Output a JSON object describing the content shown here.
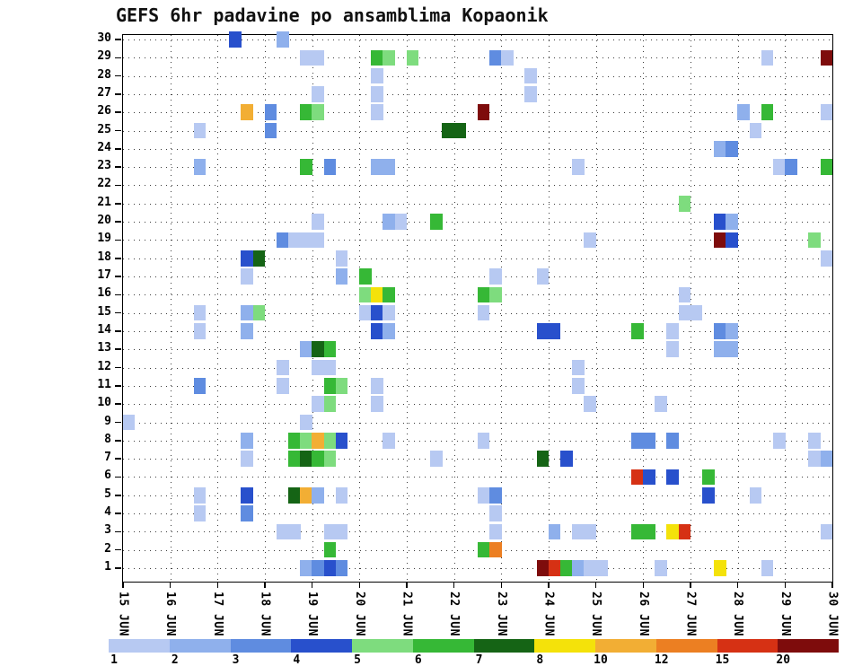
{
  "title": "GEFS 6hr padavine po ansamblima Kopaonik",
  "chart_data": {
    "type": "heatmap",
    "title": "GEFS 6hr padavine po ansamblima Kopaonik",
    "xlabel": "",
    "ylabel": "",
    "grid": "dotted",
    "x_axis": {
      "labels": [
        "15 JUN",
        "16 JUN",
        "17 JUN",
        "18 JUN",
        "19 JUN",
        "20 JUN",
        "21 JUN",
        "22 JUN",
        "23 JUN",
        "24 JUN",
        "25 JUN",
        "26 JUN",
        "27 JUN",
        "28 JUN",
        "29 JUN",
        "30 JUN"
      ],
      "slots_per_day": 4
    },
    "y_axis": {
      "labels": [
        30,
        29,
        28,
        27,
        26,
        25,
        24,
        23,
        22,
        21,
        20,
        19,
        18,
        17,
        16,
        15,
        14,
        13,
        12,
        11,
        10,
        9,
        8,
        7,
        6,
        5,
        4,
        3,
        2,
        1
      ]
    },
    "legend": {
      "position": "bottom",
      "values": [
        1,
        2,
        3,
        4,
        5,
        6,
        7,
        8,
        10,
        12,
        15,
        20
      ],
      "colors": [
        "#b7c9f2",
        "#8fb0ec",
        "#5f8ce0",
        "#2850cc",
        "#7edc7e",
        "#36b836",
        "#156415",
        "#f4e20a",
        "#f2ae34",
        "#ec7f22",
        "#d63114",
        "#7e0c0c"
      ]
    },
    "cells_format": [
      "member",
      "day_index",
      "slot",
      "value"
    ],
    "cells": [
      [
        30,
        2,
        1,
        4
      ],
      [
        30,
        3,
        1,
        2
      ],
      [
        29,
        3,
        3,
        1
      ],
      [
        29,
        4,
        0,
        1
      ],
      [
        29,
        5,
        1,
        6
      ],
      [
        29,
        5,
        2,
        5
      ],
      [
        29,
        6,
        0,
        5
      ],
      [
        29,
        7,
        3,
        3
      ],
      [
        29,
        8,
        0,
        1
      ],
      [
        29,
        13,
        2,
        1
      ],
      [
        29,
        14,
        3,
        20
      ],
      [
        28,
        5,
        1,
        1
      ],
      [
        28,
        8,
        2,
        1
      ],
      [
        27,
        4,
        0,
        1
      ],
      [
        27,
        5,
        1,
        1
      ],
      [
        27,
        8,
        2,
        1
      ],
      [
        26,
        2,
        2,
        10
      ],
      [
        26,
        3,
        0,
        3
      ],
      [
        26,
        3,
        3,
        6
      ],
      [
        26,
        4,
        0,
        5
      ],
      [
        26,
        5,
        1,
        1
      ],
      [
        26,
        7,
        2,
        20
      ],
      [
        26,
        13,
        0,
        2
      ],
      [
        26,
        13,
        2,
        6
      ],
      [
        26,
        14,
        3,
        1
      ],
      [
        25,
        1,
        2,
        1
      ],
      [
        25,
        3,
        0,
        3
      ],
      [
        25,
        6,
        3,
        7
      ],
      [
        25,
        7,
        0,
        7
      ],
      [
        25,
        13,
        1,
        1
      ],
      [
        24,
        12,
        2,
        2
      ],
      [
        24,
        12,
        3,
        3
      ],
      [
        23,
        1,
        2,
        2
      ],
      [
        23,
        3,
        3,
        6
      ],
      [
        23,
        4,
        1,
        3
      ],
      [
        23,
        5,
        1,
        2
      ],
      [
        23,
        5,
        2,
        2
      ],
      [
        23,
        9,
        2,
        1
      ],
      [
        23,
        13,
        3,
        1
      ],
      [
        23,
        14,
        0,
        3
      ],
      [
        23,
        14,
        3,
        6
      ],
      [
        21,
        11,
        3,
        5
      ],
      [
        20,
        4,
        0,
        1
      ],
      [
        20,
        5,
        2,
        2
      ],
      [
        20,
        5,
        3,
        1
      ],
      [
        20,
        6,
        2,
        6
      ],
      [
        20,
        12,
        2,
        4
      ],
      [
        20,
        12,
        3,
        2
      ],
      [
        19,
        3,
        1,
        3
      ],
      [
        19,
        3,
        2,
        1
      ],
      [
        19,
        3,
        3,
        1
      ],
      [
        19,
        4,
        0,
        1
      ],
      [
        19,
        9,
        3,
        1
      ],
      [
        19,
        12,
        2,
        20
      ],
      [
        19,
        12,
        3,
        4
      ],
      [
        19,
        14,
        2,
        5
      ],
      [
        18,
        2,
        2,
        4
      ],
      [
        18,
        2,
        3,
        7
      ],
      [
        18,
        4,
        2,
        1
      ],
      [
        18,
        14,
        3,
        1
      ],
      [
        17,
        2,
        2,
        1
      ],
      [
        17,
        4,
        2,
        2
      ],
      [
        17,
        5,
        0,
        6
      ],
      [
        17,
        7,
        3,
        1
      ],
      [
        17,
        8,
        3,
        1
      ],
      [
        16,
        5,
        0,
        5
      ],
      [
        16,
        5,
        1,
        8
      ],
      [
        16,
        5,
        2,
        6
      ],
      [
        16,
        7,
        2,
        6
      ],
      [
        16,
        7,
        3,
        5
      ],
      [
        16,
        11,
        3,
        1
      ],
      [
        15,
        1,
        2,
        1
      ],
      [
        15,
        2,
        2,
        2
      ],
      [
        15,
        2,
        3,
        5
      ],
      [
        15,
        5,
        0,
        1
      ],
      [
        15,
        5,
        1,
        4
      ],
      [
        15,
        5,
        2,
        1
      ],
      [
        15,
        7,
        2,
        1
      ],
      [
        15,
        11,
        3,
        1
      ],
      [
        15,
        12,
        0,
        1
      ],
      [
        14,
        1,
        2,
        1
      ],
      [
        14,
        2,
        2,
        2
      ],
      [
        14,
        5,
        1,
        4
      ],
      [
        14,
        5,
        2,
        2
      ],
      [
        14,
        8,
        3,
        4
      ],
      [
        14,
        9,
        0,
        4
      ],
      [
        14,
        10,
        3,
        6
      ],
      [
        14,
        11,
        2,
        1
      ],
      [
        14,
        12,
        2,
        3
      ],
      [
        14,
        12,
        3,
        2
      ],
      [
        13,
        3,
        3,
        2
      ],
      [
        13,
        4,
        0,
        7
      ],
      [
        13,
        4,
        1,
        6
      ],
      [
        13,
        11,
        2,
        1
      ],
      [
        13,
        12,
        2,
        2
      ],
      [
        13,
        12,
        3,
        2
      ],
      [
        12,
        3,
        1,
        1
      ],
      [
        12,
        4,
        0,
        1
      ],
      [
        12,
        4,
        1,
        1
      ],
      [
        12,
        9,
        2,
        1
      ],
      [
        11,
        1,
        2,
        3
      ],
      [
        11,
        3,
        1,
        1
      ],
      [
        11,
        4,
        1,
        6
      ],
      [
        11,
        4,
        2,
        5
      ],
      [
        11,
        5,
        1,
        1
      ],
      [
        11,
        9,
        2,
        1
      ],
      [
        10,
        4,
        0,
        1
      ],
      [
        10,
        4,
        1,
        5
      ],
      [
        10,
        5,
        1,
        1
      ],
      [
        10,
        9,
        3,
        1
      ],
      [
        10,
        11,
        1,
        1
      ],
      [
        9,
        0,
        0,
        1
      ],
      [
        9,
        3,
        3,
        1
      ],
      [
        8,
        2,
        2,
        2
      ],
      [
        8,
        3,
        2,
        6
      ],
      [
        8,
        3,
        3,
        5
      ],
      [
        8,
        4,
        0,
        10
      ],
      [
        8,
        4,
        1,
        5
      ],
      [
        8,
        4,
        2,
        4
      ],
      [
        8,
        5,
        2,
        1
      ],
      [
        8,
        7,
        2,
        1
      ],
      [
        8,
        10,
        3,
        3
      ],
      [
        8,
        11,
        0,
        3
      ],
      [
        8,
        11,
        2,
        3
      ],
      [
        8,
        13,
        3,
        1
      ],
      [
        8,
        14,
        2,
        1
      ],
      [
        7,
        2,
        2,
        1
      ],
      [
        7,
        3,
        2,
        6
      ],
      [
        7,
        3,
        3,
        7
      ],
      [
        7,
        4,
        0,
        6
      ],
      [
        7,
        4,
        1,
        5
      ],
      [
        7,
        6,
        2,
        1
      ],
      [
        7,
        8,
        3,
        7
      ],
      [
        7,
        9,
        1,
        4
      ],
      [
        7,
        14,
        2,
        1
      ],
      [
        7,
        14,
        3,
        2
      ],
      [
        6,
        10,
        3,
        15
      ],
      [
        6,
        11,
        0,
        4
      ],
      [
        6,
        11,
        2,
        4
      ],
      [
        6,
        12,
        1,
        6
      ],
      [
        5,
        1,
        2,
        1
      ],
      [
        5,
        2,
        2,
        4
      ],
      [
        5,
        3,
        2,
        7
      ],
      [
        5,
        3,
        3,
        10
      ],
      [
        5,
        4,
        0,
        2
      ],
      [
        5,
        4,
        2,
        1
      ],
      [
        5,
        7,
        2,
        1
      ],
      [
        5,
        7,
        3,
        3
      ],
      [
        5,
        12,
        1,
        4
      ],
      [
        5,
        13,
        1,
        1
      ],
      [
        4,
        1,
        2,
        1
      ],
      [
        4,
        2,
        2,
        3
      ],
      [
        4,
        7,
        3,
        1
      ],
      [
        3,
        3,
        1,
        1
      ],
      [
        3,
        3,
        2,
        1
      ],
      [
        3,
        4,
        1,
        1
      ],
      [
        3,
        4,
        2,
        1
      ],
      [
        3,
        7,
        3,
        1
      ],
      [
        3,
        9,
        0,
        2
      ],
      [
        3,
        9,
        2,
        1
      ],
      [
        3,
        9,
        3,
        1
      ],
      [
        3,
        10,
        3,
        6
      ],
      [
        3,
        11,
        0,
        6
      ],
      [
        3,
        11,
        2,
        8
      ],
      [
        3,
        11,
        3,
        15
      ],
      [
        3,
        14,
        3,
        1
      ],
      [
        2,
        4,
        1,
        6
      ],
      [
        2,
        7,
        2,
        6
      ],
      [
        2,
        7,
        3,
        12
      ],
      [
        1,
        3,
        3,
        2
      ],
      [
        1,
        4,
        0,
        3
      ],
      [
        1,
        4,
        1,
        4
      ],
      [
        1,
        4,
        2,
        3
      ],
      [
        1,
        8,
        3,
        20
      ],
      [
        1,
        9,
        0,
        15
      ],
      [
        1,
        9,
        1,
        6
      ],
      [
        1,
        9,
        2,
        2
      ],
      [
        1,
        9,
        3,
        1
      ],
      [
        1,
        10,
        0,
        1
      ],
      [
        1,
        11,
        1,
        1
      ],
      [
        1,
        12,
        2,
        8
      ],
      [
        1,
        13,
        2,
        1
      ]
    ]
  }
}
